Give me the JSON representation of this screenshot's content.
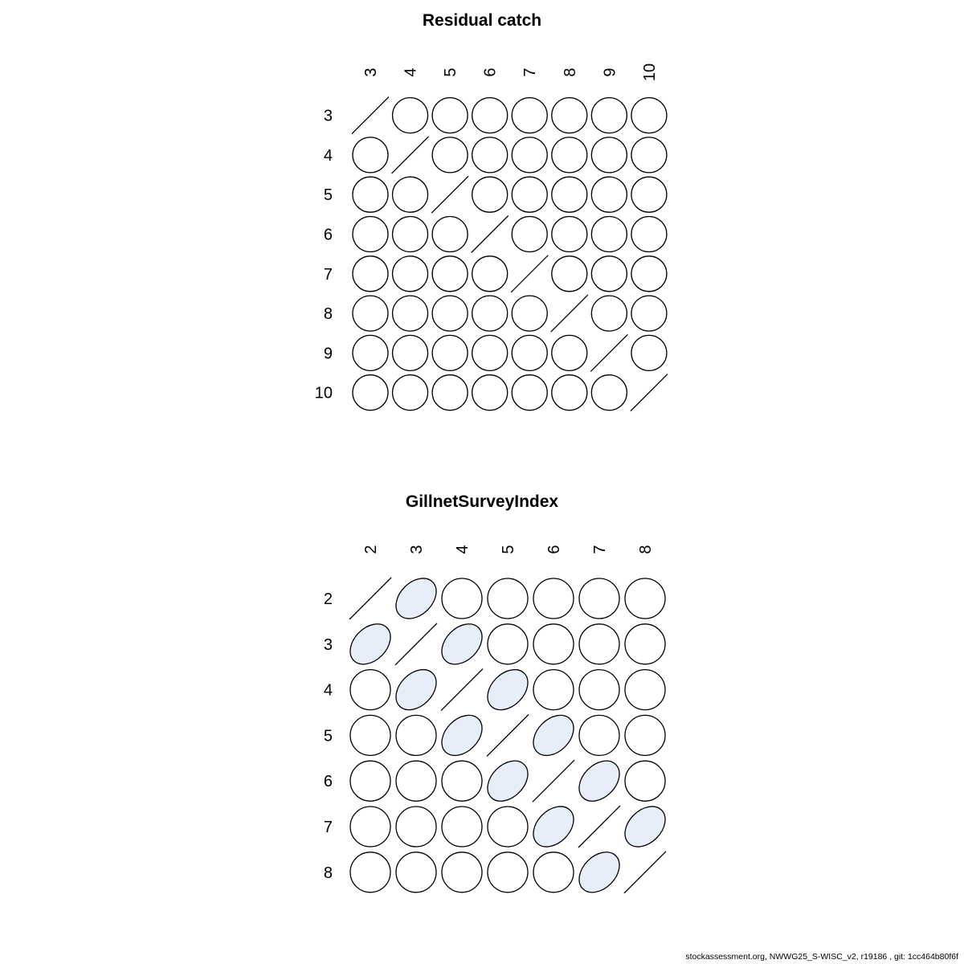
{
  "page": {
    "background": "#ffffff"
  },
  "footer": {
    "text": "stockassessment.org, NWWG25_S-WISC_v2, r19186 , git: 1cc464b80f6f"
  },
  "colors": {
    "positive_fill": "#e8edfa",
    "zero_fill": "#ffffff",
    "stroke": "#000000",
    "text": "#000000"
  },
  "chart_data": [
    {
      "type": "heatmap",
      "subtype": "correlation-ellipse-matrix",
      "title": "Residual catch",
      "row_labels": [
        "3",
        "4",
        "5",
        "6",
        "7",
        "8",
        "9",
        "10"
      ],
      "col_labels": [
        "3",
        "4",
        "5",
        "6",
        "7",
        "8",
        "9",
        "10"
      ],
      "legend": "diagonal cells drawn as slash; off-diagonal cells drawn as correlation ellipses (circle = 0 correlation)",
      "matrix": [
        [
          1.0,
          0.0,
          0.0,
          0.0,
          0.0,
          0.0,
          0.0,
          0.0
        ],
        [
          0.0,
          1.0,
          0.0,
          0.0,
          0.0,
          0.0,
          0.0,
          0.0
        ],
        [
          0.0,
          0.0,
          1.0,
          0.0,
          0.0,
          0.0,
          0.0,
          0.0
        ],
        [
          0.0,
          0.0,
          0.0,
          1.0,
          0.0,
          0.0,
          0.0,
          0.0
        ],
        [
          0.0,
          0.0,
          0.0,
          0.0,
          1.0,
          0.0,
          0.0,
          0.0
        ],
        [
          0.0,
          0.0,
          0.0,
          0.0,
          0.0,
          1.0,
          0.0,
          0.0
        ],
        [
          0.0,
          0.0,
          0.0,
          0.0,
          0.0,
          0.0,
          1.0,
          0.0
        ],
        [
          0.0,
          0.0,
          0.0,
          0.0,
          0.0,
          0.0,
          0.0,
          1.0
        ]
      ]
    },
    {
      "type": "heatmap",
      "subtype": "correlation-ellipse-matrix",
      "title": "GillnetSurveyIndex",
      "row_labels": [
        "2",
        "3",
        "4",
        "5",
        "6",
        "7",
        "8"
      ],
      "col_labels": [
        "2",
        "3",
        "4",
        "5",
        "6",
        "7",
        "8"
      ],
      "legend": "diagonal cells drawn as slash; first off-diagonal shows positive correlation (tilted light-blue ellipses)",
      "matrix": [
        [
          1.0,
          0.35,
          0.0,
          0.0,
          0.0,
          0.0,
          0.0
        ],
        [
          0.35,
          1.0,
          0.35,
          0.0,
          0.0,
          0.0,
          0.0
        ],
        [
          0.0,
          0.35,
          1.0,
          0.35,
          0.0,
          0.0,
          0.0
        ],
        [
          0.0,
          0.0,
          0.35,
          1.0,
          0.35,
          0.0,
          0.0
        ],
        [
          0.0,
          0.0,
          0.0,
          0.35,
          1.0,
          0.35,
          0.0
        ],
        [
          0.0,
          0.0,
          0.0,
          0.0,
          0.35,
          1.0,
          0.35
        ],
        [
          0.0,
          0.0,
          0.0,
          0.0,
          0.0,
          0.35,
          1.0
        ]
      ]
    }
  ]
}
